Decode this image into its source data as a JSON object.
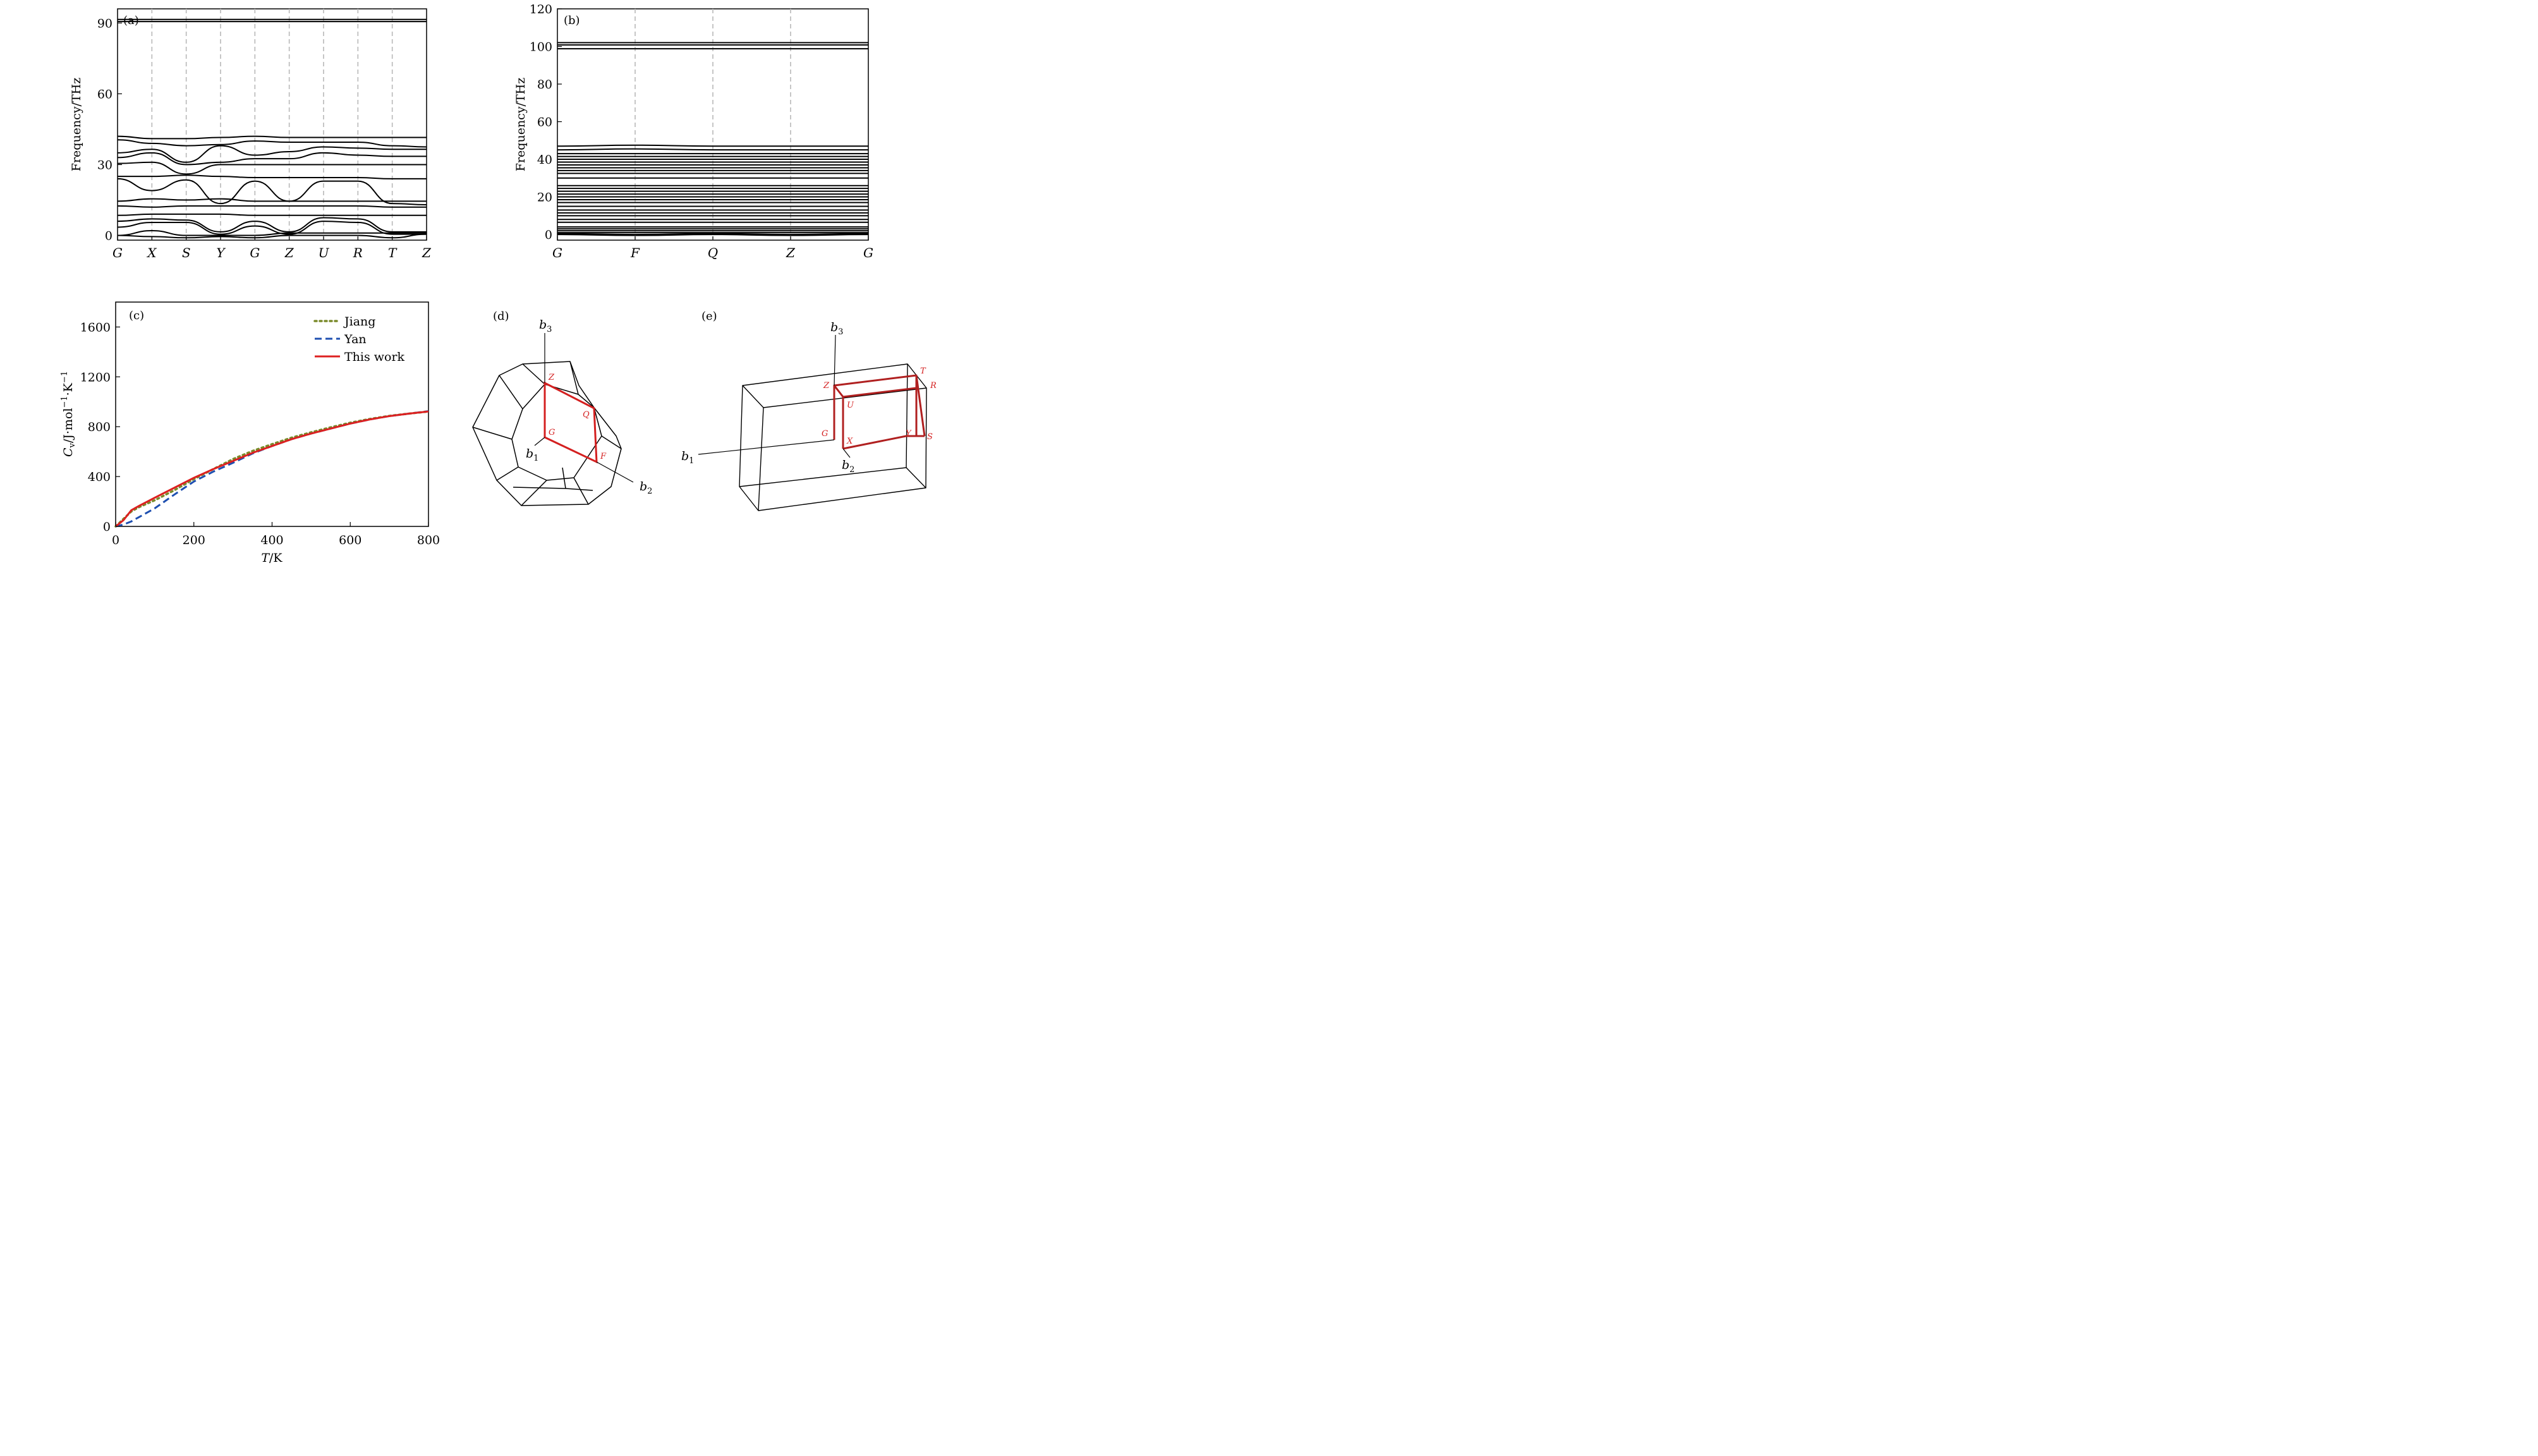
{
  "colors": {
    "band": "#000000",
    "gridline": "#b8b8b8",
    "jiang": "#7a8a2a",
    "yan": "#1e4fb0",
    "this_work": "#dd2020",
    "brillouin_path": "#d42020"
  },
  "panels": {
    "a": {
      "label": "(a)",
      "ylabel": "Frequency/THz"
    },
    "b": {
      "label": "(b)",
      "ylabel": "Frequency/THz"
    },
    "c": {
      "label": "(c)",
      "xlabel_italic": "T",
      "xlabel_rest": "/K",
      "ylabel_main": "C",
      "ylabel_sub": "v",
      "ylabel_rest": "/J·mol",
      "ylabel_sup1": "−1",
      "ylabel_mid": "·K",
      "ylabel_sup2": "−1"
    },
    "d": {
      "label": "(d)",
      "points": [
        "Z",
        "Q",
        "G",
        "F"
      ],
      "vectors": [
        "b",
        "b",
        "b"
      ],
      "vector_subs": [
        "3",
        "1",
        "2"
      ]
    },
    "e": {
      "label": "(e)",
      "points": [
        "T",
        "R",
        "Z",
        "U",
        "G",
        "X",
        "Y",
        "S"
      ],
      "vectors": [
        "b",
        "b",
        "b"
      ],
      "vector_subs": [
        "3",
        "1",
        "2"
      ]
    }
  },
  "chart_data": [
    {
      "type": "line",
      "panel": "a",
      "ylabel": "Frequency/THz",
      "ylim": [
        -2,
        96
      ],
      "yticks": [
        0,
        30,
        60,
        90
      ],
      "kpoints": [
        "G",
        "X",
        "S",
        "Y",
        "G",
        "Z",
        "U",
        "R",
        "T",
        "Z"
      ],
      "grid": "vertical dashed at high-symmetry points",
      "series": [
        {
          "values": [
            90.6,
            90.6,
            90.6,
            90.6,
            90.6,
            90.6,
            90.6,
            90.6,
            90.6,
            90.6
          ]
        },
        {
          "values": [
            91.5,
            91.5,
            91.5,
            91.5,
            91.5,
            91.5,
            91.5,
            91.5,
            91.5,
            91.5
          ]
        },
        {
          "values": [
            42.0,
            41.0,
            41.0,
            41.5,
            42.0,
            41.5,
            41.5,
            41.5,
            41.5,
            41.5
          ]
        },
        {
          "values": [
            40.5,
            39.0,
            38.0,
            38.5,
            40.0,
            39.5,
            39.5,
            39.5,
            38.0,
            37.5
          ]
        },
        {
          "values": [
            35.0,
            36.5,
            31.0,
            38.0,
            34.0,
            35.5,
            37.5,
            37.0,
            36.5,
            36.5
          ]
        },
        {
          "values": [
            33.0,
            35.0,
            30.0,
            31.0,
            32.5,
            32.5,
            35.0,
            34.0,
            33.5,
            33.5
          ]
        },
        {
          "values": [
            30.5,
            31.0,
            26.0,
            30.0,
            30.0,
            30.0,
            30.0,
            30.0,
            30.0,
            30.0
          ]
        },
        {
          "values": [
            25.0,
            25.0,
            25.5,
            25.0,
            24.5,
            24.5,
            24.5,
            24.5,
            24.0,
            24.0
          ]
        },
        {
          "values": [
            24.0,
            19.0,
            23.5,
            13.5,
            23.0,
            14.5,
            23.0,
            23.0,
            13.5,
            13.0
          ]
        },
        {
          "values": [
            14.5,
            15.5,
            15.0,
            15.5,
            14.5,
            14.5,
            14.5,
            14.5,
            14.5,
            14.5
          ]
        },
        {
          "values": [
            12.5,
            12.0,
            12.5,
            12.5,
            12.5,
            12.5,
            12.5,
            12.5,
            12.0,
            12.0
          ]
        },
        {
          "values": [
            8.5,
            9.0,
            9.0,
            9.0,
            8.5,
            8.5,
            8.5,
            8.5,
            8.5,
            8.5
          ]
        },
        {
          "values": [
            6.0,
            7.0,
            6.5,
            1.5,
            6.0,
            1.5,
            7.5,
            7.0,
            1.5,
            1.5
          ]
        },
        {
          "values": [
            3.5,
            5.5,
            5.5,
            0.5,
            4.0,
            0.5,
            6.0,
            5.5,
            0.5,
            0.5
          ]
        },
        {
          "values": [
            0.0,
            2.0,
            0.0,
            0.0,
            0.0,
            1.0,
            1.0,
            1.0,
            1.0,
            1.0
          ]
        },
        {
          "values": [
            0.0,
            -0.5,
            -1.0,
            -0.5,
            -1.0,
            0.0,
            0.0,
            0.0,
            -1.0,
            0.5
          ]
        }
      ]
    },
    {
      "type": "line",
      "panel": "b",
      "ylabel": "Frequency/THz",
      "ylim": [
        -3,
        120
      ],
      "yticks": [
        0,
        20,
        40,
        60,
        80,
        100,
        120
      ],
      "kpoints": [
        "G",
        "F",
        "Q",
        "Z",
        "G"
      ],
      "grid": "vertical dashed at high-symmetry points",
      "series": [
        {
          "name": "",
          "values": [
            102.0,
            102.0,
            102.0,
            102.0,
            102.0
          ]
        },
        {
          "name": "",
          "values": [
            100.8,
            100.8,
            100.8,
            100.8,
            100.8
          ]
        },
        {
          "name": "",
          "values": [
            98.8,
            98.8,
            98.8,
            98.8,
            98.8
          ]
        },
        {
          "name": "",
          "values": [
            47.0,
            47.5,
            47.0,
            47.0,
            47.0
          ]
        },
        {
          "name": "",
          "values": [
            45.0,
            45.5,
            45.0,
            45.0,
            45.0
          ]
        },
        {
          "name": "",
          "values": [
            43.0,
            43.0,
            43.0,
            43.0,
            43.0
          ]
        },
        {
          "name": "",
          "values": [
            41.5,
            41.5,
            41.5,
            41.5,
            41.5
          ]
        },
        {
          "name": "",
          "values": [
            40.0,
            40.0,
            40.0,
            40.0,
            40.0
          ]
        },
        {
          "name": "",
          "values": [
            38.5,
            38.5,
            38.5,
            38.5,
            38.5
          ]
        },
        {
          "name": "",
          "values": [
            37.0,
            37.0,
            37.0,
            37.0,
            37.0
          ]
        },
        {
          "name": "",
          "values": [
            35.5,
            35.5,
            35.5,
            35.5,
            35.5
          ]
        },
        {
          "name": "",
          "values": [
            34.0,
            34.0,
            34.0,
            34.0,
            34.0
          ]
        },
        {
          "name": "",
          "values": [
            32.5,
            32.5,
            32.5,
            32.5,
            32.5
          ]
        },
        {
          "name": "",
          "values": [
            30.0,
            30.0,
            30.0,
            30.0,
            30.0
          ]
        },
        {
          "name": "",
          "values": [
            26.0,
            26.0,
            26.0,
            26.0,
            26.0
          ]
        },
        {
          "name": "",
          "values": [
            24.5,
            24.5,
            24.5,
            24.5,
            24.5
          ]
        },
        {
          "name": "",
          "values": [
            23.0,
            23.0,
            23.0,
            23.0,
            23.0
          ]
        },
        {
          "name": "",
          "values": [
            21.5,
            21.5,
            21.5,
            21.5,
            21.5
          ]
        },
        {
          "name": "",
          "values": [
            20.0,
            20.0,
            20.0,
            20.0,
            20.0
          ]
        },
        {
          "name": "",
          "values": [
            18.5,
            18.5,
            18.5,
            18.5,
            18.5
          ]
        },
        {
          "name": "",
          "values": [
            17.0,
            17.0,
            17.0,
            17.0,
            17.0
          ]
        },
        {
          "name": "",
          "values": [
            15.0,
            15.0,
            15.0,
            15.0,
            15.0
          ]
        },
        {
          "name": "",
          "values": [
            13.0,
            13.0,
            13.0,
            13.0,
            13.0
          ]
        },
        {
          "name": "",
          "values": [
            11.5,
            11.5,
            11.5,
            11.5,
            11.5
          ]
        },
        {
          "name": "",
          "values": [
            10.0,
            10.0,
            10.0,
            10.0,
            10.0
          ]
        },
        {
          "name": "",
          "values": [
            8.0,
            8.0,
            8.0,
            8.0,
            8.0
          ]
        },
        {
          "name": "",
          "values": [
            6.5,
            6.5,
            6.5,
            6.5,
            6.5
          ]
        },
        {
          "name": "",
          "values": [
            4.0,
            4.0,
            4.0,
            4.0,
            4.0
          ]
        },
        {
          "name": "",
          "values": [
            3.0,
            3.0,
            3.0,
            3.0,
            3.0
          ]
        },
        {
          "name": "",
          "values": [
            2.0,
            2.0,
            2.0,
            2.0,
            2.0
          ]
        },
        {
          "name": "",
          "values": [
            1.0,
            1.0,
            1.0,
            1.0,
            1.0
          ]
        },
        {
          "name": "",
          "values": [
            0.5,
            0.0,
            0.5,
            0.0,
            0.5
          ]
        },
        {
          "name": "",
          "values": [
            0.0,
            -0.5,
            0.0,
            -0.5,
            0.0
          ]
        }
      ]
    },
    {
      "type": "line",
      "panel": "c",
      "xlabel": "T/K",
      "ylabel": "Cv/J·mol−1·K−1",
      "xlim": [
        0,
        800
      ],
      "ylim": [
        0,
        1800
      ],
      "xticks": [
        0,
        200,
        400,
        600,
        800
      ],
      "yticks": [
        0,
        400,
        800,
        1200,
        1600
      ],
      "legend": "top-right",
      "series": [
        {
          "name": "Jiang",
          "x": [
            0,
            20,
            40,
            60,
            100,
            150,
            200,
            250,
            300,
            350,
            400,
            450,
            500,
            550,
            600,
            650,
            700,
            750,
            800
          ],
          "values": [
            0,
            60,
            120,
            155,
            210,
            290,
            380,
            460,
            540,
            605,
            660,
            712,
            755,
            795,
            832,
            862,
            887,
            905,
            922
          ]
        },
        {
          "name": "Yan",
          "x": [
            0,
            20,
            40,
            60,
            100,
            150,
            200,
            250,
            300,
            350,
            400,
            450,
            500,
            550,
            600,
            650,
            700,
            750,
            800
          ],
          "values": [
            0,
            15,
            40,
            75,
            145,
            255,
            360,
            440,
            510,
            585,
            645,
            700,
            745,
            785,
            825,
            858,
            885,
            905,
            925
          ]
        },
        {
          "name": "This work",
          "x": [
            0,
            20,
            40,
            60,
            100,
            150,
            200,
            250,
            300,
            350,
            400,
            450,
            500,
            550,
            600,
            650,
            700,
            750,
            800
          ],
          "values": [
            0,
            50,
            130,
            165,
            230,
            310,
            390,
            460,
            525,
            590,
            645,
            700,
            745,
            785,
            825,
            858,
            885,
            905,
            922
          ]
        }
      ]
    }
  ]
}
